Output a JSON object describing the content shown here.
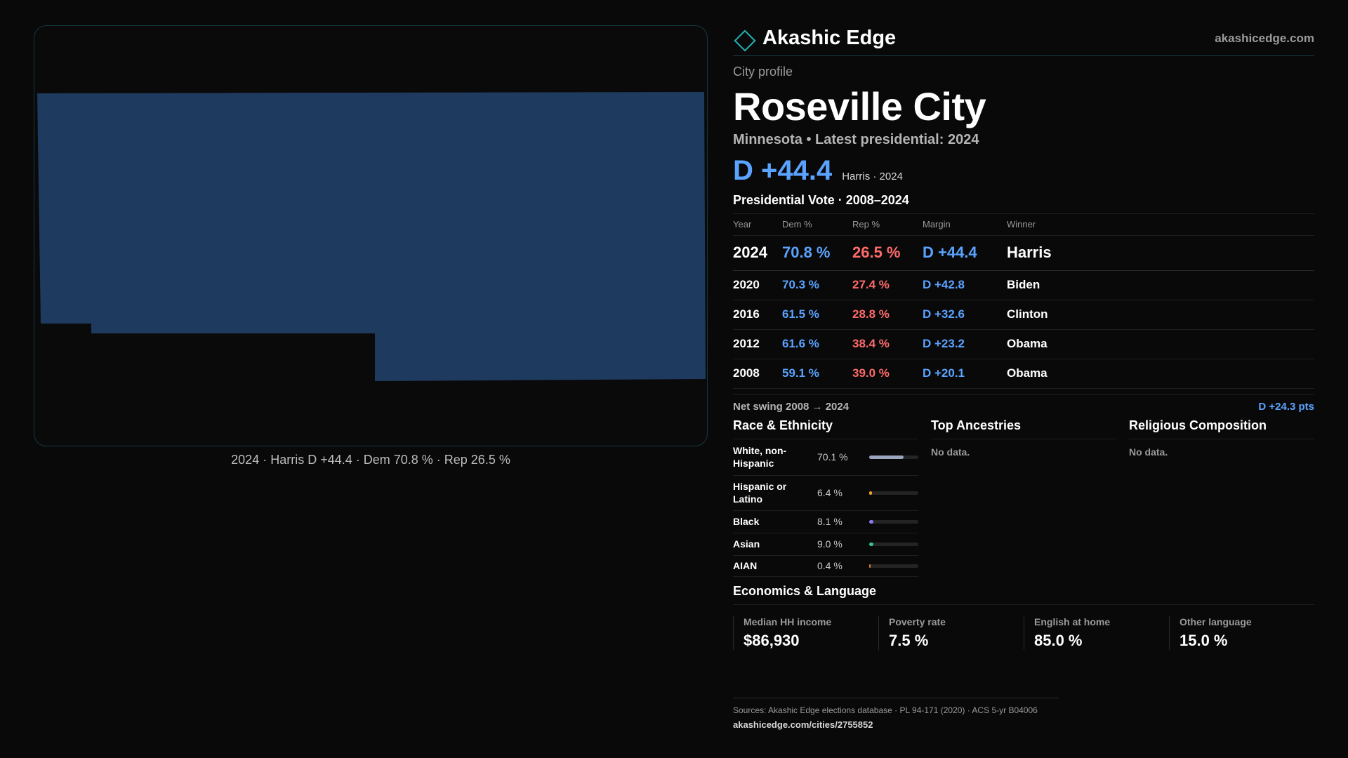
{
  "brand": {
    "name": "Akashic Edge",
    "url": "akashicedge.com"
  },
  "profile": {
    "eyebrow": "City profile",
    "title": "Roseville City",
    "subtitle": "Minnesota • Latest presidential: 2024",
    "margin": "D +44.4",
    "margin_note": "Harris · 2024"
  },
  "map": {
    "fill_color": "#1f3a5f",
    "caption": "2024 · Harris D +44.4 · Dem 70.8 % · Rep 26.5 %"
  },
  "votes": {
    "title": "Presidential Vote · 2008–2024",
    "headers": {
      "year": "Year",
      "dem": "Dem %",
      "rep": "Rep %",
      "margin": "Margin",
      "winner": "Winner"
    },
    "rows": [
      {
        "year": "2024",
        "dem": "70.8 %",
        "rep": "26.5 %",
        "margin": "D +44.4",
        "winner": "Harris"
      },
      {
        "year": "2020",
        "dem": "70.3 %",
        "rep": "27.4 %",
        "margin": "D +42.8",
        "winner": "Biden"
      },
      {
        "year": "2016",
        "dem": "61.5 %",
        "rep": "28.8 %",
        "margin": "D +32.6",
        "winner": "Clinton"
      },
      {
        "year": "2012",
        "dem": "61.6 %",
        "rep": "38.4 %",
        "margin": "D +23.2",
        "winner": "Obama"
      },
      {
        "year": "2008",
        "dem": "59.1 %",
        "rep": "39.0 %",
        "margin": "D +20.1",
        "winner": "Obama"
      }
    ]
  },
  "swing": {
    "label": "Net swing 2008 → 2024",
    "value": "D +24.3 pts"
  },
  "race": {
    "title": "Race & Ethnicity",
    "rows": [
      {
        "label": "White, non-Hispanic",
        "pct": "70.1 %",
        "fraction": 0.701,
        "color": "#9aa6bd"
      },
      {
        "label": "Hispanic or Latino",
        "pct": "6.4 %",
        "fraction": 0.064,
        "color": "#f0a020"
      },
      {
        "label": "Black",
        "pct": "8.1 %",
        "fraction": 0.081,
        "color": "#8a7cf0"
      },
      {
        "label": "Asian",
        "pct": "9.0 %",
        "fraction": 0.09,
        "color": "#2ec79a"
      },
      {
        "label": "AIAN",
        "pct": "0.4 %",
        "fraction": 0.004,
        "color": "#e07a30"
      }
    ]
  },
  "ancestries": {
    "title": "Top Ancestries",
    "empty": "No data."
  },
  "religion": {
    "title": "Religious Composition",
    "empty": "No data."
  },
  "economics": {
    "title": "Economics & Language",
    "cards": [
      {
        "label": "Median HH income",
        "value": "$86,930"
      },
      {
        "label": "Poverty rate",
        "value": "7.5 %"
      },
      {
        "label": "English at home",
        "value": "85.0 %"
      },
      {
        "label": "Other language",
        "value": "15.0 %"
      }
    ]
  },
  "footer": {
    "sources": "Sources: Akashic Edge elections database · PL 94-171 (2020) · ACS 5-yr B04006",
    "link": "akashicedge.com/cities/2755852"
  }
}
